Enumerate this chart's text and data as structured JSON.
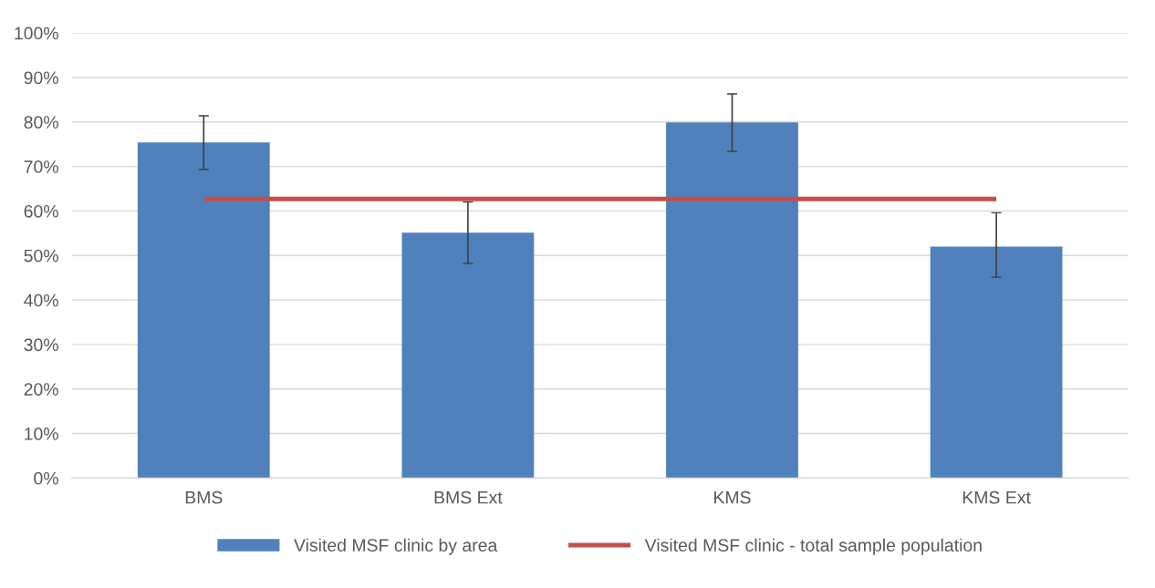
{
  "chart_data": {
    "type": "bar",
    "categories": [
      "BMS",
      "BMS Ext",
      "KMS",
      "KMS Ext"
    ],
    "series": [
      {
        "name": "Visited MSF clinic by area",
        "color": "#4f81bd",
        "values": [
          75.4,
          55.1,
          79.9,
          52.0
        ],
        "errors": [
          [
            69.3,
            81.4
          ],
          [
            48.2,
            62.0
          ],
          [
            73.4,
            86.3
          ],
          [
            45.1,
            59.6
          ]
        ]
      },
      {
        "name": "Visited MSF clinic - total sample population",
        "type": "line",
        "color": "#c0504d",
        "values": [
          62.7,
          62.7,
          62.7,
          62.7
        ]
      }
    ],
    "ylim": [
      0,
      100
    ],
    "yticks": [
      {
        "value": 0,
        "label": "0%"
      },
      {
        "value": 10,
        "label": "10%"
      },
      {
        "value": 20,
        "label": "20%"
      },
      {
        "value": 30,
        "label": "30%"
      },
      {
        "value": 40,
        "label": "40%"
      },
      {
        "value": 50,
        "label": "50%"
      },
      {
        "value": 60,
        "label": "60%"
      },
      {
        "value": 70,
        "label": "70%"
      },
      {
        "value": 80,
        "label": "80%"
      },
      {
        "value": 90,
        "label": "90%"
      },
      {
        "value": 100,
        "label": "100%"
      }
    ],
    "grid": "y",
    "legend": "bottom",
    "marker": "none",
    "line_style": "solid"
  }
}
